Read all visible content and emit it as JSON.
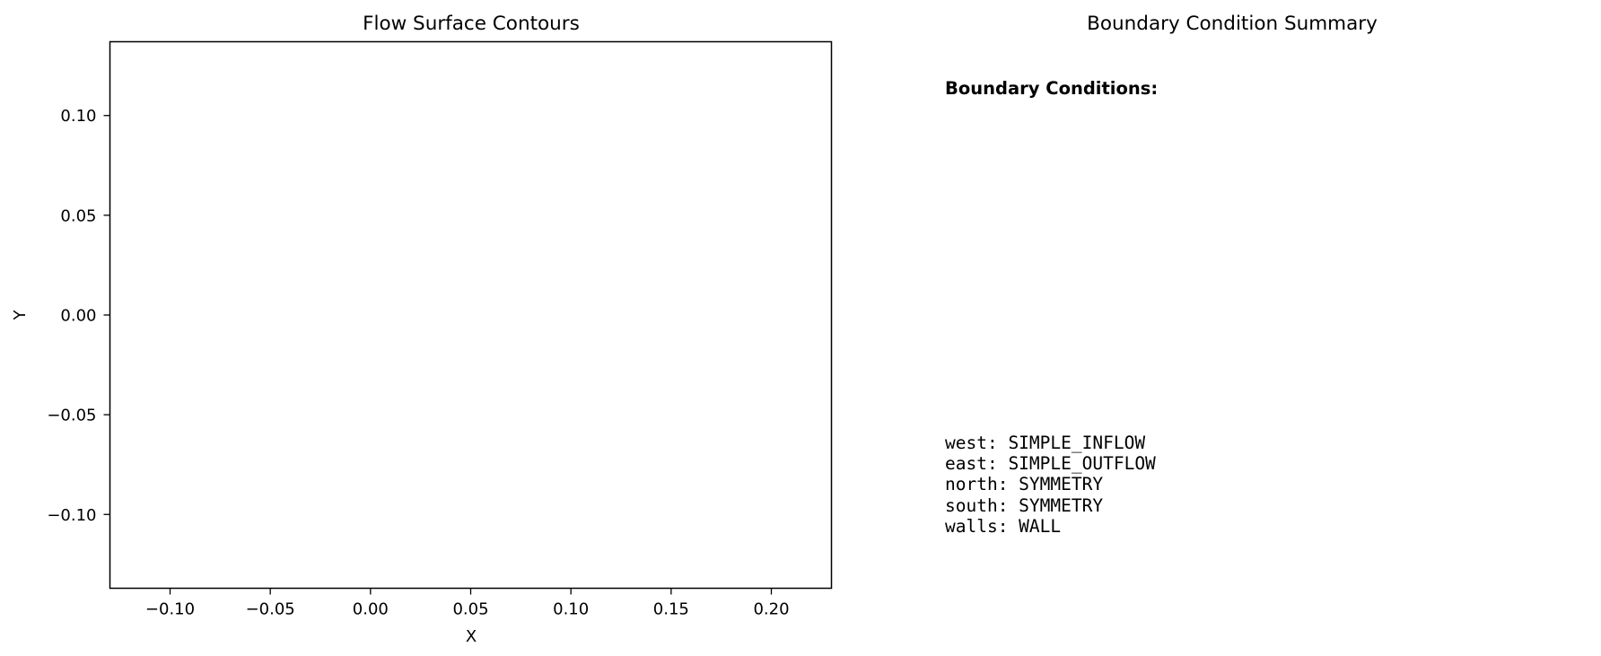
{
  "chart_data": [
    {
      "type": "contour",
      "title": "Flow Surface Contours",
      "xlabel": "X",
      "ylabel": "Y",
      "xlim": [
        -0.13,
        0.23
      ],
      "ylim": [
        -0.137,
        0.137
      ],
      "xticks": [
        -0.1,
        -0.05,
        0.0,
        0.05,
        0.1,
        0.15,
        0.2
      ],
      "xtick_labels": [
        "−0.10",
        "−0.05",
        "0.00",
        "0.05",
        "0.10",
        "0.15",
        "0.20"
      ],
      "yticks": [
        0.1,
        0.05,
        0.0,
        -0.05,
        -0.1
      ],
      "ytick_labels": [
        "0.10",
        "0.05",
        "0.00",
        "−0.05",
        "−0.10"
      ],
      "series": [],
      "grid": false,
      "legend": "none"
    },
    {
      "type": "table",
      "title": "Boundary Condition Summary",
      "heading": "Boundary Conditions:",
      "rows": [
        "west: SIMPLE_INFLOW",
        "east: SIMPLE_OUTFLOW",
        "north: SYMMETRY",
        "south: SYMMETRY",
        "walls: WALL"
      ]
    }
  ]
}
